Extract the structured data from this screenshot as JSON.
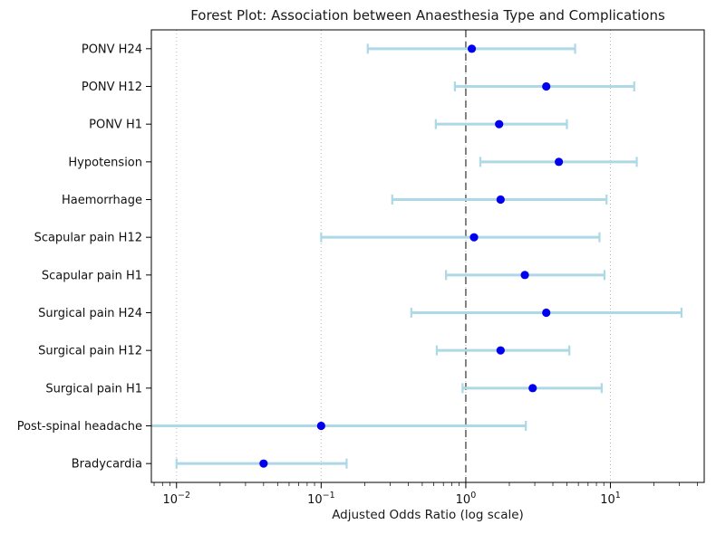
{
  "chart_data": {
    "type": "scatter",
    "variant": "forest-plot",
    "title": "Forest Plot: Association between Anaesthesia Type and Complications",
    "xlabel": "Adjusted Odds Ratio (log scale)",
    "x_scale": "log",
    "xlim": [
      0.0067,
      44.5
    ],
    "grid": "vertical-dotted-at-decades",
    "legend": "none",
    "reference_line_x": 1,
    "x_major_ticks": [
      {
        "value": 0.01,
        "base": "10",
        "exponent": "−2"
      },
      {
        "value": 0.1,
        "base": "10",
        "exponent": "−1"
      },
      {
        "value": 1,
        "base": "10",
        "exponent": "0"
      },
      {
        "value": 10,
        "base": "10",
        "exponent": "1"
      }
    ],
    "rows": [
      {
        "label": "PONV H24",
        "or": 1.1,
        "ci_low": 0.21,
        "ci_high": 5.7
      },
      {
        "label": "PONV H12",
        "or": 3.6,
        "ci_low": 0.84,
        "ci_high": 14.6
      },
      {
        "label": "PONV H1",
        "or": 1.7,
        "ci_low": 0.62,
        "ci_high": 5.0
      },
      {
        "label": "Hypotension",
        "or": 4.4,
        "ci_low": 1.26,
        "ci_high": 15.2
      },
      {
        "label": "Haemorrhage",
        "or": 1.74,
        "ci_low": 0.31,
        "ci_high": 9.4
      },
      {
        "label": "Scapular pain H12",
        "or": 1.14,
        "ci_low": 0.1,
        "ci_high": 8.4
      },
      {
        "label": "Scapular pain H1",
        "or": 2.56,
        "ci_low": 0.73,
        "ci_high": 9.1
      },
      {
        "label": "Surgical pain H24",
        "or": 3.6,
        "ci_low": 0.42,
        "ci_high": 31.0
      },
      {
        "label": "Surgical pain H12",
        "or": 1.74,
        "ci_low": 0.63,
        "ci_high": 5.2
      },
      {
        "label": "Surgical pain H1",
        "or": 2.9,
        "ci_low": 0.95,
        "ci_high": 8.7
      },
      {
        "label": "Post-spinal headache",
        "or": 0.1,
        "ci_low": 0.004,
        "ci_high": 2.6
      },
      {
        "label": "Bradycardia",
        "or": 0.04,
        "ci_low": 0.01,
        "ci_high": 0.15
      }
    ],
    "colors": {
      "marker": "#0000ee",
      "error_bar": "#add8e6",
      "reference_line": "#6e6e6e",
      "grid": "#b8b8b8",
      "frame": "#000000",
      "text": "#111111",
      "background": "#ffffff"
    }
  }
}
